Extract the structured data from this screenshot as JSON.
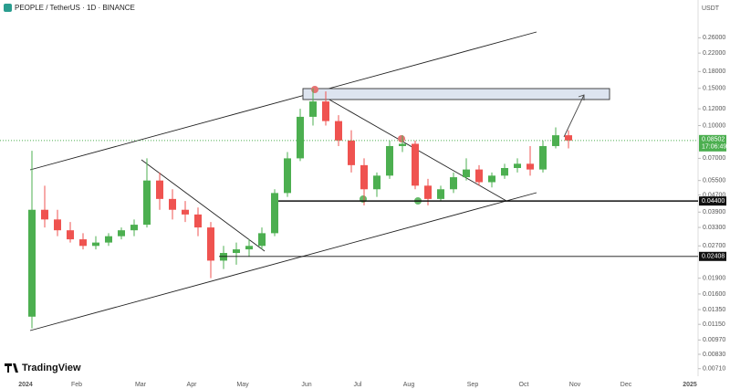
{
  "header": {
    "symbol": "PEOPLE / TetherUS · 1D · BINANCE",
    "brand": "TradingView"
  },
  "chart_data": {
    "type": "candlestick",
    "currency": "USDT",
    "log_scale": true,
    "grid": false,
    "up_color": "#4caf50",
    "down_color": "#ef5350",
    "categories": [
      "2024",
      null,
      null,
      null,
      "Feb",
      null,
      null,
      null,
      null,
      "Mar",
      null,
      null,
      null,
      "Apr",
      null,
      null,
      null,
      "May",
      null,
      null,
      null,
      null,
      "Jun",
      null,
      null,
      null,
      "Jul",
      null,
      null,
      null,
      "Aug",
      null,
      null,
      null,
      null,
      "Sep",
      null,
      null,
      null,
      "Oct",
      null,
      null,
      null,
      "Nov",
      null,
      null,
      null,
      "Dec",
      null,
      null,
      null,
      null,
      "2025"
    ],
    "open": [
      0.0125,
      0.04,
      0.036,
      0.032,
      0.029,
      0.027,
      0.028,
      0.03,
      0.032,
      0.034,
      0.055,
      0.045,
      0.04,
      0.038,
      0.033,
      0.023,
      0.025,
      0.026,
      0.027,
      0.031,
      0.048,
      0.07,
      0.11,
      0.13,
      0.105,
      0.085,
      0.065,
      0.05,
      0.058,
      0.08,
      0.082,
      0.052,
      0.045,
      0.05,
      0.057,
      0.062,
      0.054,
      0.058,
      0.063,
      0.066,
      0.062,
      0.08,
      0.09,
      null,
      null,
      null,
      null,
      null,
      null,
      null,
      null,
      null,
      null
    ],
    "high": [
      0.076,
      0.052,
      0.04,
      0.035,
      0.031,
      0.03,
      0.031,
      0.033,
      0.036,
      0.07,
      0.06,
      0.05,
      0.044,
      0.041,
      0.035,
      0.027,
      0.028,
      0.029,
      0.033,
      0.05,
      0.075,
      0.12,
      0.15,
      0.145,
      0.112,
      0.095,
      0.07,
      0.06,
      0.085,
      0.09,
      0.085,
      0.056,
      0.052,
      0.06,
      0.07,
      0.065,
      0.06,
      0.066,
      0.07,
      0.08,
      0.085,
      0.098,
      0.095,
      null,
      null,
      null,
      null,
      null,
      null,
      null,
      null,
      null,
      null
    ],
    "low": [
      0.011,
      0.033,
      0.03,
      0.028,
      0.026,
      0.026,
      0.027,
      0.029,
      0.03,
      0.033,
      0.04,
      0.036,
      0.035,
      0.03,
      0.019,
      0.021,
      0.022,
      0.024,
      0.026,
      0.03,
      0.046,
      0.068,
      0.1,
      0.1,
      0.08,
      0.06,
      0.042,
      0.046,
      0.056,
      0.075,
      0.05,
      0.042,
      0.044,
      0.048,
      0.055,
      0.052,
      0.051,
      0.056,
      0.06,
      0.058,
      0.06,
      0.078,
      0.078,
      null,
      null,
      null,
      null,
      null,
      null,
      null,
      null,
      null,
      null
    ],
    "close": [
      0.04,
      0.036,
      0.032,
      0.029,
      0.027,
      0.028,
      0.03,
      0.032,
      0.034,
      0.055,
      0.045,
      0.04,
      0.038,
      0.033,
      0.023,
      0.025,
      0.026,
      0.027,
      0.031,
      0.048,
      0.07,
      0.11,
      0.13,
      0.105,
      0.085,
      0.065,
      0.05,
      0.058,
      0.08,
      0.082,
      0.052,
      0.045,
      0.05,
      0.057,
      0.062,
      0.054,
      0.058,
      0.063,
      0.066,
      0.062,
      0.08,
      0.09,
      0.085,
      null,
      null,
      null,
      null,
      null,
      null,
      null,
      null,
      null,
      null
    ],
    "ylim": [
      0.00667,
      0.355
    ],
    "yticks": [
      {
        "value": 0.26,
        "label": "0.26000"
      },
      {
        "value": 0.22,
        "label": "0.22000"
      },
      {
        "value": 0.18,
        "label": "0.18000"
      },
      {
        "value": 0.15,
        "label": "0.15000"
      },
      {
        "value": 0.12,
        "label": "0.12000"
      },
      {
        "value": 0.1,
        "label": "0.10000"
      },
      {
        "value": 0.07,
        "label": "0.07000"
      },
      {
        "value": 0.055,
        "label": "0.05500"
      },
      {
        "value": 0.047,
        "label": "0.04700"
      },
      {
        "value": 0.039,
        "label": "0.03900"
      },
      {
        "value": 0.033,
        "label": "0.03300"
      },
      {
        "value": 0.027,
        "label": "0.02700"
      },
      {
        "value": 0.019,
        "label": "0.01900"
      },
      {
        "value": 0.016,
        "label": "0.01600"
      },
      {
        "value": 0.0135,
        "label": "0.01350"
      },
      {
        "value": 0.0115,
        "label": "0.01150"
      },
      {
        "value": 0.0097,
        "label": "0.00970"
      },
      {
        "value": 0.0083,
        "label": "0.00830"
      },
      {
        "value": 0.0071,
        "label": "0.00710"
      }
    ],
    "current_price": {
      "value": 0.08502,
      "label": "0.08502",
      "countdown": "17:06:49"
    },
    "levels": [
      {
        "value": 0.044,
        "label": "0.04400"
      },
      {
        "value": 0.02408,
        "label": "0.02408"
      }
    ]
  }
}
